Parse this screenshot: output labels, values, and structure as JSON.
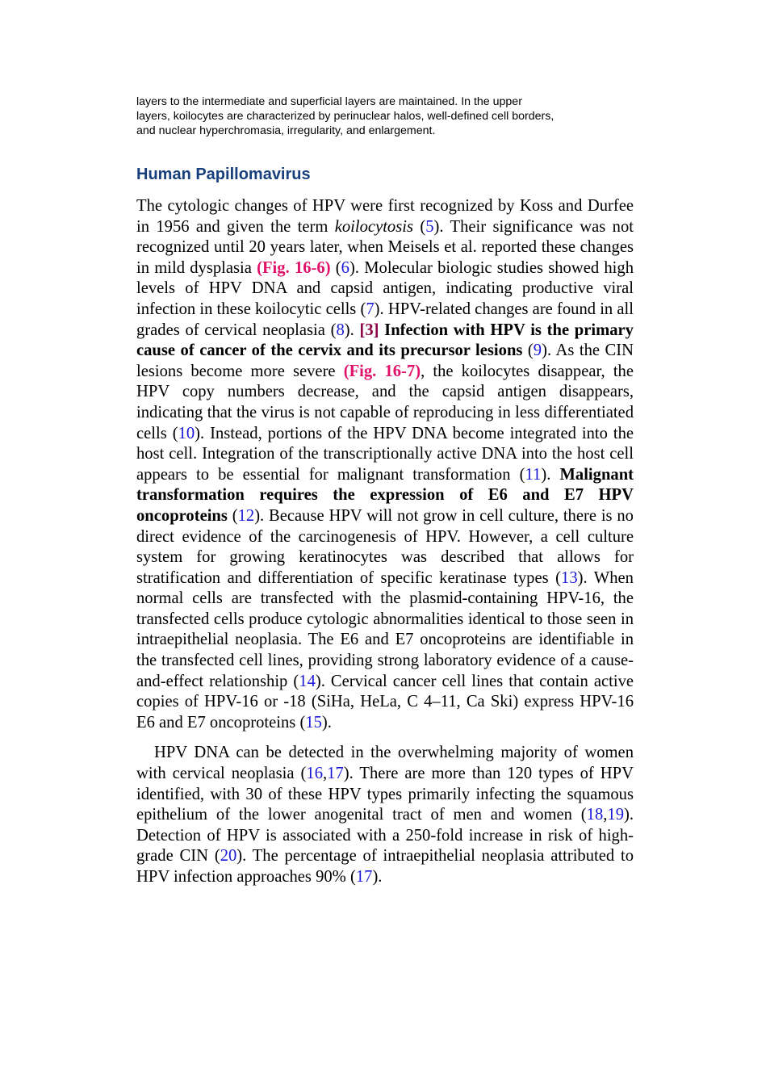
{
  "intro": {
    "lines": [
      "layers to the intermediate and superficial layers are maintained. In the upper",
      "layers, koilocytes are characterized by perinuclear halos, well-defined cell borders,",
      "and nuclear hyperchromasia, irregularity, and enlargement."
    ]
  },
  "section": {
    "heading": "Human Papillomavirus",
    "paragraphs": [
      {
        "runs": [
          {
            "text": "The cytologic changes of HPV were first recognized by Koss and Durfee in 1956 and given the term "
          },
          {
            "italic": "koilocytosis"
          },
          {
            "text": " ("
          },
          {
            "link": "5"
          },
          {
            "text": "). Their significance was not recognized until 20 years later, when Meisels et al. reported these changes in mild dysplasia "
          },
          {
            "fig": "(Fig. 16-6)"
          },
          {
            "text": " ("
          },
          {
            "link": "6"
          },
          {
            "text": "). Molecular biologic studies showed high levels of HPV DNA and capsid antigen, indicating productive viral infection in these koilocytic cells ("
          },
          {
            "link": "7"
          },
          {
            "text": "). HPV-related changes are found in all grades of cervical neoplasia ("
          },
          {
            "link": "8"
          },
          {
            "text": "). "
          },
          {
            "mark": "[3]"
          },
          {
            "bold": " Infection with HPV is the primary cause of cancer of the cervix and its precursor lesions"
          },
          {
            "text": " ("
          },
          {
            "link": "9"
          },
          {
            "text": "). As the CIN lesions become more severe "
          },
          {
            "fig": "(Fig. 16-7)"
          },
          {
            "text": ", the koilocytes disappear, the HPV copy numbers decrease, and the capsid antigen disappears, indicating that the virus is not capable of reproducing in less differentiated cells ("
          },
          {
            "link": "10"
          },
          {
            "text": "). Instead, portions of the HPV DNA become integrated into the host cell. Integration of the transcriptionally active DNA into the host cell appears to be essential for malignant transformation ("
          },
          {
            "link": "11"
          },
          {
            "text": "). "
          },
          {
            "bold": "Malignant transformation requires the expression of E6 and E7 HPV oncoproteins"
          },
          {
            "text": " ("
          },
          {
            "link": "12"
          },
          {
            "text": "). Because HPV will not grow in cell culture, there is no direct evidence of the carcinogenesis of HPV. However, a cell culture system for growing keratinocytes was described that allows for stratification and differentiation of specific keratinase types ("
          },
          {
            "link": "13"
          },
          {
            "text": "). When normal cells are transfected with the plasmid-containing HPV-16, the transfected cells produce cytologic abnormalities identical to those seen in intraepithelial neoplasia. The E6 and E7 oncoproteins are identifiable in the transfected cell lines, providing strong laboratory evidence of a cause-and-effect relationship ("
          },
          {
            "link": "14"
          },
          {
            "text": "). Cervical cancer cell lines that contain active copies of HPV-16 or -18 (SiHa, HeLa, C 4–11, Ca Ski) express HPV-16 E6 and E7 oncoproteins ("
          },
          {
            "link": "15"
          },
          {
            "text": ")."
          }
        ]
      },
      {
        "runs": [
          {
            "text": "HPV DNA can be detected in the overwhelming majority of women with cervical neoplasia ("
          },
          {
            "link": "16"
          },
          {
            "text": ","
          },
          {
            "link": "17"
          },
          {
            "text": "). There are more than 120 types of HPV identified, with 30 of these HPV types primarily infecting the squamous epithelium of the lower anogenital tract of men and women ("
          },
          {
            "link": "18"
          },
          {
            "text": ","
          },
          {
            "link": "19"
          },
          {
            "text": "). Detection of HPV is associated with a 250-fold increase in risk of high-grade CIN ("
          },
          {
            "link": "20"
          },
          {
            "text": "). The percentage of intraepithelial neoplasia attributed to HPV infection approaches 90% ("
          },
          {
            "link": "17"
          },
          {
            "text": ")."
          }
        ]
      }
    ]
  }
}
